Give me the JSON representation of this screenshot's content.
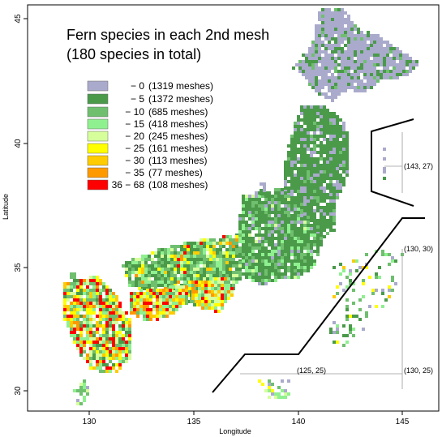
{
  "title_lines": [
    "Fern species in each 2nd mesh",
    "(180 species in total)"
  ],
  "axes": {
    "xlabel": "Longitude",
    "ylabel": "Latitude",
    "xticks": [
      "130",
      "135",
      "140",
      "145"
    ],
    "yticks": [
      "30",
      "35",
      "40",
      "45"
    ],
    "xlim": [
      127.3,
      146.7
    ],
    "ylim": [
      29.4,
      45.5
    ]
  },
  "legend": {
    "placement": "top-left",
    "items": [
      {
        "range": "− 0",
        "count": "(1319 meshes)",
        "color": "#aaaacc"
      },
      {
        "range": "− 5",
        "count": "(1372 meshes)",
        "color": "#4a9a4a"
      },
      {
        "range": "− 10",
        "count": "(685 meshes)",
        "color": "#6fbf6f"
      },
      {
        "range": "− 15",
        "count": "(418 meshes)",
        "color": "#8ff08f"
      },
      {
        "range": "− 20",
        "count": "(245 meshes)",
        "color": "#d6ff9c"
      },
      {
        "range": "− 25",
        "count": "(161 meshes)",
        "color": "#ffff00"
      },
      {
        "range": "− 30",
        "count": "(113 meshes)",
        "color": "#ffcc00"
      },
      {
        "range": "− 35",
        "count": "(77 meshes)",
        "color": "#ff9900"
      },
      {
        "range": "36 − 68",
        "count": "(108 meshes)",
        "color": "#ff0000"
      }
    ]
  },
  "inset_labels": [
    "(143, 27)",
    "(130, 30)",
    "(125, 25)",
    "(130, 25)"
  ],
  "colors": {
    "zero": "#aaaacc",
    "low": "#4a9a4a",
    "mid": "#6fbf6f",
    "light": "#8ff08f",
    "pale": "#d6ff9c",
    "yellow": "#ffff00",
    "gold": "#ffcc00",
    "orange": "#ff9900",
    "red": "#ff0000",
    "frame": "#000000",
    "inset_line": "#999999"
  }
}
